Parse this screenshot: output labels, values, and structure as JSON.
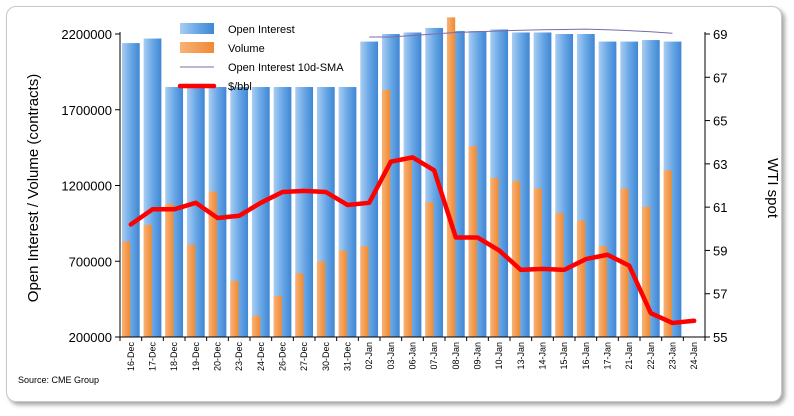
{
  "chart_data": {
    "type": "bar",
    "categories": [
      "16-Dec",
      "17-Dec",
      "18-Dec",
      "19-Dec",
      "20-Dec",
      "23-Dec",
      "24-Dec",
      "26-Dec",
      "27-Dec",
      "30-Dec",
      "31-Dec",
      "02-Jan",
      "03-Jan",
      "06-Jan",
      "07-Jan",
      "08-Jan",
      "09-Jan",
      "10-Jan",
      "13-Jan",
      "14-Jan",
      "15-Jan",
      "16-Jan",
      "17-Jan",
      "21-Jan",
      "22-Jan",
      "23-Jan",
      "24-Jan"
    ],
    "series": [
      {
        "name": "Open Interest",
        "kind": "bar",
        "axis": "left",
        "color": "#5b9bd5",
        "values": [
          2140000,
          2170000,
          1850000,
          1850000,
          1850000,
          1850000,
          1850000,
          1850000,
          1850000,
          1850000,
          1850000,
          2150000,
          2200000,
          2210000,
          2240000,
          2220000,
          2220000,
          2230000,
          2210000,
          2210000,
          2200000,
          2200000,
          2150000,
          2150000,
          2160000,
          2150000,
          null
        ]
      },
      {
        "name": "Volume",
        "kind": "bar",
        "axis": "left",
        "color": "#f79646",
        "values": [
          830000,
          940000,
          1080000,
          810000,
          1160000,
          570000,
          340000,
          470000,
          620000,
          700000,
          770000,
          800000,
          1830000,
          1380000,
          1090000,
          2310000,
          1460000,
          1250000,
          1230000,
          1180000,
          1020000,
          970000,
          800000,
          1180000,
          1060000,
          1300000,
          null
        ]
      },
      {
        "name": "Open Interest 10d-SMA",
        "kind": "line",
        "axis": "left",
        "color": "#7f6aa8",
        "values": [
          null,
          null,
          null,
          null,
          null,
          null,
          null,
          null,
          null,
          null,
          null,
          2180000,
          2180000,
          2190000,
          2200000,
          2210000,
          2215000,
          2220000,
          2225000,
          2228000,
          2230000,
          2232000,
          2228000,
          2222000,
          2215000,
          2205000,
          null
        ]
      },
      {
        "name": "$/bbl",
        "kind": "line",
        "axis": "right",
        "color": "#ff0000",
        "values": [
          60.2,
          60.9,
          60.9,
          61.2,
          60.5,
          60.6,
          61.2,
          61.7,
          61.75,
          61.7,
          61.1,
          61.2,
          63.1,
          63.3,
          62.7,
          59.6,
          59.6,
          59.0,
          58.1,
          58.15,
          58.1,
          58.6,
          58.8,
          58.3,
          56.1,
          55.65,
          55.75
        ]
      }
    ],
    "ylabel": "Open Interest / Volume (contracts)",
    "y2label": "WTI spot",
    "ylim": [
      200000,
      2200000
    ],
    "yticks": [
      200000,
      700000,
      1200000,
      1700000,
      2200000
    ],
    "y2lim": [
      55,
      69
    ],
    "y2ticks": [
      55,
      57,
      59,
      61,
      63,
      65,
      67,
      69
    ],
    "legend_position": "top-left",
    "grid": false
  },
  "source_label": "Source: CME Group"
}
